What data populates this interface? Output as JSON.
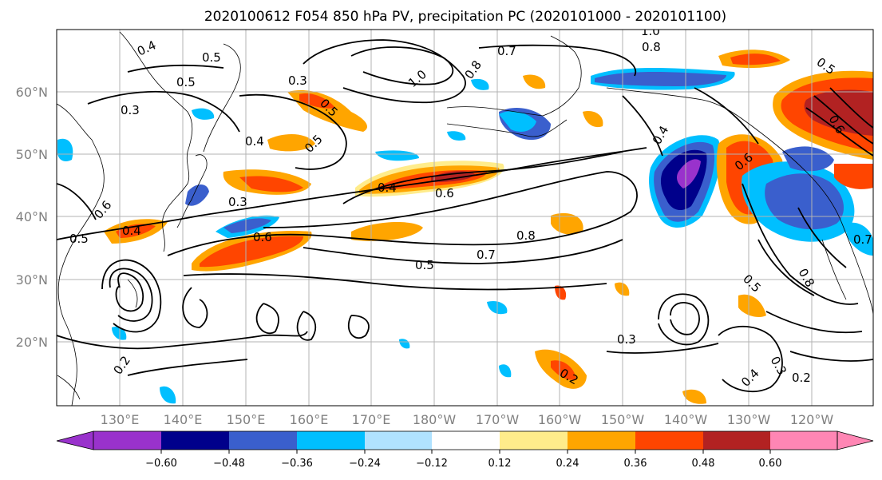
{
  "title": "2020100612 F054 850 hPa PV, precipitation PC (2020101000 - 2020101100)",
  "map": {
    "lat_labels": [
      "60°N",
      "50°N",
      "40°N",
      "30°N",
      "20°N"
    ],
    "lon_labels": [
      "130°E",
      "140°E",
      "150°E",
      "160°E",
      "170°E",
      "180°W",
      "170°W",
      "160°W",
      "150°W",
      "140°W",
      "130°W",
      "120°W"
    ],
    "contour_labels": [
      "0.4",
      "0.5",
      "0.5",
      "0.3",
      "0.3",
      "0.5",
      "0.4",
      "0.3",
      "0.5",
      "0.6",
      "0.4",
      "0.6",
      "0.4",
      "0.5",
      "0.7",
      "0.8",
      "0.5",
      "1.0",
      "0.8",
      "0.7",
      "0.5",
      "0.4",
      "0.6",
      "0.3",
      "0.2",
      "0.2",
      "0.3",
      "0.4",
      "0.2",
      "0.6",
      "0.8",
      "0.5",
      "0.7",
      "1.0",
      "0.8",
      "0.6"
    ]
  },
  "colorbar": {
    "ticks": [
      "−0.60",
      "−0.48",
      "−0.36",
      "−0.24",
      "−0.12",
      "0.12",
      "0.24",
      "0.36",
      "0.48",
      "0.60"
    ],
    "colors": [
      "#9932cc",
      "#00008b",
      "#3a5fcd",
      "#00bfff",
      "#b0e2ff",
      "#ffffff",
      "#ffec8b",
      "#ffa500",
      "#ff4500",
      "#b22222",
      "#ff86b4"
    ]
  },
  "fill_colors": {
    "strong_neg": "#00008b",
    "neg": "#3a5fcd",
    "mid_neg": "#00bfff",
    "light_neg": "#b0e2ff",
    "light_pos": "#ffec8b",
    "pos": "#ffa500",
    "mid_pos": "#ff4500",
    "strong_pos": "#b22222"
  }
}
